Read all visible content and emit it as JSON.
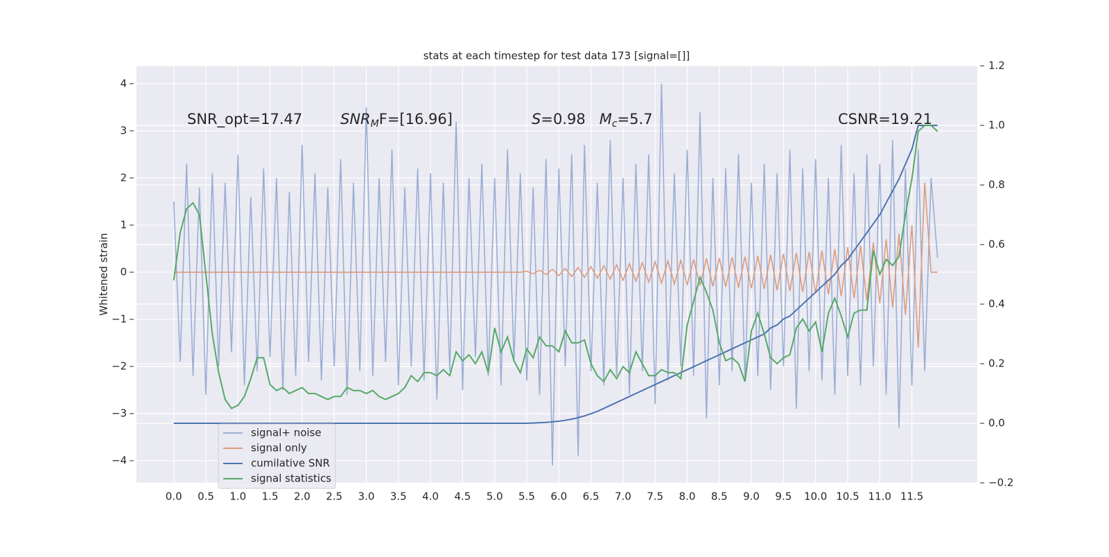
{
  "chart_data": {
    "type": "line",
    "title": "stats at each timestep for test data 173 [signal=[]]",
    "y_label": "Whitened strain",
    "annotations": [
      [
        {
          "text": "SNR_opt=17.47"
        }
      ],
      [
        {
          "text": "SNR",
          "italic": true
        },
        {
          "text": "M",
          "italic": true,
          "sub": true
        },
        {
          "text": "F=[16.96]"
        }
      ],
      [
        {
          "text": "S",
          "italic": true
        },
        {
          "text": "=0.98   "
        },
        {
          "text": "M",
          "italic": true
        },
        {
          "text": "c",
          "italic": true,
          "sub": true
        },
        {
          "text": "=5.7"
        }
      ],
      [
        {
          "text": "CSNR=19.21"
        }
      ]
    ],
    "x": [
      0.0,
      0.1,
      0.2,
      0.3,
      0.4,
      0.5,
      0.6,
      0.7,
      0.8,
      0.9,
      1.0,
      1.1,
      1.2,
      1.3,
      1.4,
      1.5,
      1.6,
      1.7,
      1.8,
      1.9,
      2.0,
      2.1,
      2.2,
      2.3,
      2.4,
      2.5,
      2.6,
      2.7,
      2.8,
      2.9,
      3.0,
      3.1,
      3.2,
      3.3,
      3.4,
      3.5,
      3.6,
      3.7,
      3.8,
      3.9,
      4.0,
      4.1,
      4.2,
      4.3,
      4.4,
      4.5,
      4.6,
      4.7,
      4.8,
      4.9,
      5.0,
      5.1,
      5.2,
      5.3,
      5.4,
      5.5,
      5.6,
      5.7,
      5.8,
      5.9,
      6.0,
      6.1,
      6.2,
      6.3,
      6.4,
      6.5,
      6.6,
      6.7,
      6.8,
      6.9,
      7.0,
      7.1,
      7.2,
      7.3,
      7.4,
      7.5,
      7.6,
      7.7,
      7.8,
      7.9,
      8.0,
      8.1,
      8.2,
      8.3,
      8.4,
      8.5,
      8.6,
      8.7,
      8.8,
      8.9,
      9.0,
      9.1,
      9.2,
      9.3,
      9.4,
      9.5,
      9.6,
      9.7,
      9.8,
      9.9,
      10.0,
      10.1,
      10.2,
      10.3,
      10.4,
      10.5,
      10.6,
      10.7,
      10.8,
      10.9,
      11.0,
      11.1,
      11.2,
      11.3,
      11.4,
      11.5,
      11.6,
      11.7,
      11.8,
      11.9
    ],
    "series": [
      {
        "name": "signal+ noise",
        "color": "#9aaed4",
        "values": [
          1.5,
          -1.9,
          2.3,
          -2.2,
          1.8,
          -2.6,
          2.1,
          -2.0,
          1.9,
          -1.7,
          2.5,
          -2.4,
          1.6,
          -2.1,
          2.2,
          -1.8,
          2.0,
          -2.5,
          1.7,
          -2.2,
          2.7,
          -1.9,
          2.1,
          -2.3,
          1.8,
          -2.0,
          2.4,
          -2.6,
          1.9,
          -2.1,
          3.5,
          -2.2,
          2.0,
          -1.9,
          2.6,
          -2.4,
          1.8,
          -2.0,
          2.2,
          -2.3,
          2.1,
          -2.7,
          1.9,
          -2.1,
          3.2,
          -2.5,
          2.0,
          -1.8,
          2.3,
          -2.2,
          2.0,
          -2.4,
          2.6,
          -1.9,
          2.1,
          -2.3,
          1.8,
          -2.6,
          2.4,
          -4.1,
          2.2,
          -2.0,
          2.5,
          -3.9,
          2.7,
          -2.1,
          1.9,
          -2.4,
          2.8,
          -2.2,
          2.0,
          -2.6,
          2.3,
          -2.1,
          2.5,
          -2.8,
          4.0,
          -2.3,
          2.1,
          -2.0,
          2.6,
          -2.2,
          3.4,
          -3.1,
          2.0,
          -2.4,
          2.2,
          -2.1,
          2.5,
          -2.3,
          1.9,
          -2.2,
          2.3,
          -2.5,
          2.1,
          -2.0,
          2.6,
          -2.9,
          2.2,
          -2.1,
          2.4,
          -2.3,
          2.0,
          -2.6,
          2.7,
          -2.2,
          2.1,
          -2.4,
          2.5,
          -2.0,
          2.3,
          -2.6,
          2.8,
          -3.3,
          2.2,
          -2.4,
          2.6,
          -2.1,
          2.0,
          0.3
        ]
      },
      {
        "name": "signal only",
        "color": "#dd9a7c",
        "values": [
          0,
          0,
          0,
          0,
          0,
          0,
          0,
          0,
          0,
          0,
          0,
          0,
          0,
          0,
          0,
          0,
          0,
          0,
          0,
          0,
          0,
          0,
          0,
          0,
          0,
          0,
          0,
          0,
          0,
          0,
          0,
          0,
          0,
          0,
          0,
          0,
          0,
          0,
          0,
          0,
          0,
          0,
          0,
          0,
          0,
          0,
          0,
          0,
          0,
          0,
          0,
          0,
          0,
          0,
          0,
          0.02,
          -0.03,
          0.04,
          -0.05,
          0.06,
          -0.07,
          0.08,
          -0.09,
          0.1,
          -0.11,
          0.12,
          -0.13,
          0.14,
          -0.15,
          0.16,
          -0.17,
          0.18,
          -0.19,
          0.2,
          -0.21,
          0.22,
          -0.23,
          0.24,
          -0.25,
          0.25,
          -0.26,
          0.27,
          -0.28,
          0.29,
          -0.3,
          0.3,
          -0.31,
          0.32,
          -0.33,
          0.33,
          -0.34,
          0.35,
          -0.36,
          0.37,
          -0.38,
          0.39,
          -0.4,
          0.41,
          -0.42,
          0.43,
          -0.44,
          0.45,
          -0.47,
          0.49,
          -0.51,
          0.53,
          -0.55,
          0.57,
          -0.6,
          0.63,
          -0.66,
          0.7,
          -0.75,
          0.82,
          -0.9,
          1.0,
          -1.6,
          1.9,
          0,
          0
        ]
      },
      {
        "name": "cumilative SNR",
        "color": "#4c72b0",
        "axis": "y2",
        "values": [
          0,
          0,
          0,
          0,
          0,
          0,
          0,
          0,
          0,
          0,
          0,
          0,
          0,
          0,
          0,
          0,
          0,
          0,
          0,
          0,
          0,
          0,
          0,
          0,
          0,
          0,
          0,
          0,
          0,
          0,
          0,
          0,
          0,
          0,
          0,
          0,
          0,
          0,
          0,
          0,
          0,
          0,
          0,
          0,
          0,
          0,
          0,
          0,
          0,
          0,
          0,
          0,
          0,
          0,
          0,
          0,
          0.001,
          0.002,
          0.003,
          0.005,
          0.007,
          0.01,
          0.014,
          0.019,
          0.025,
          0.032,
          0.04,
          0.05,
          0.06,
          0.07,
          0.08,
          0.09,
          0.1,
          0.11,
          0.12,
          0.13,
          0.14,
          0.15,
          0.16,
          0.17,
          0.18,
          0.19,
          0.2,
          0.21,
          0.22,
          0.23,
          0.24,
          0.25,
          0.26,
          0.27,
          0.28,
          0.29,
          0.3,
          0.32,
          0.33,
          0.35,
          0.36,
          0.38,
          0.4,
          0.42,
          0.44,
          0.46,
          0.48,
          0.5,
          0.53,
          0.55,
          0.58,
          0.61,
          0.64,
          0.67,
          0.7,
          0.74,
          0.78,
          0.82,
          0.87,
          0.92,
          1.0,
          1.0,
          1.0,
          1.0
        ]
      },
      {
        "name": "signal statistics",
        "color": "#55a868",
        "axis": "y2",
        "values": [
          0.48,
          0.64,
          0.72,
          0.74,
          0.7,
          0.5,
          0.3,
          0.17,
          0.08,
          0.05,
          0.06,
          0.09,
          0.15,
          0.22,
          0.22,
          0.13,
          0.11,
          0.12,
          0.1,
          0.11,
          0.12,
          0.1,
          0.1,
          0.09,
          0.08,
          0.09,
          0.09,
          0.12,
          0.11,
          0.11,
          0.1,
          0.11,
          0.09,
          0.08,
          0.09,
          0.1,
          0.12,
          0.16,
          0.14,
          0.17,
          0.17,
          0.16,
          0.18,
          0.16,
          0.24,
          0.21,
          0.23,
          0.2,
          0.24,
          0.17,
          0.32,
          0.24,
          0.29,
          0.21,
          0.17,
          0.25,
          0.22,
          0.29,
          0.26,
          0.26,
          0.24,
          0.31,
          0.27,
          0.27,
          0.28,
          0.2,
          0.16,
          0.14,
          0.18,
          0.15,
          0.19,
          0.17,
          0.24,
          0.2,
          0.16,
          0.16,
          0.18,
          0.17,
          0.17,
          0.15,
          0.33,
          0.41,
          0.49,
          0.44,
          0.38,
          0.27,
          0.21,
          0.22,
          0.2,
          0.14,
          0.31,
          0.37,
          0.3,
          0.22,
          0.2,
          0.22,
          0.23,
          0.32,
          0.35,
          0.31,
          0.34,
          0.24,
          0.37,
          0.42,
          0.36,
          0.29,
          0.37,
          0.38,
          0.38,
          0.58,
          0.5,
          0.55,
          0.53,
          0.56,
          0.7,
          0.82,
          0.98,
          1.0,
          1.0,
          0.98
        ]
      }
    ],
    "xlim": [
      -0.58,
      12.52
    ],
    "xticks": [
      {
        "value": 0,
        "label": "0.0"
      },
      0.5,
      {
        "value": 1,
        "label": "1.0"
      },
      1.5,
      {
        "value": 2,
        "label": "2.0"
      },
      2.5,
      {
        "value": 3,
        "label": "3.0"
      },
      3.5,
      {
        "value": 4,
        "label": "4.0"
      },
      4.5,
      {
        "value": 5,
        "label": "5.0"
      },
      5.5,
      {
        "value": 6,
        "label": "6.0"
      },
      6.5,
      {
        "value": 7,
        "label": "7.0"
      },
      7.5,
      {
        "value": 8,
        "label": "8.0"
      },
      8.5,
      {
        "value": 9,
        "label": "9.0"
      },
      9.5,
      {
        "value": 10,
        "label": "10.0"
      },
      10.5,
      {
        "value": 11,
        "label": "11.0"
      },
      11.5
    ],
    "ylim": [
      -4.47,
      4.38
    ],
    "yticks": [
      {
        "value": -4,
        "label": "−4"
      },
      {
        "value": -3,
        "label": "−3"
      },
      {
        "value": -2,
        "label": "−2"
      },
      {
        "value": -1,
        "label": "−1"
      },
      0,
      1,
      2,
      3,
      4
    ],
    "y2lim": [
      -0.2,
      1.2
    ],
    "y2ticks": [
      {
        "value": -0.2,
        "label": "−0.2"
      },
      {
        "value": 0,
        "label": "0.0"
      },
      0.2,
      0.4,
      0.6,
      0.8,
      {
        "value": 1,
        "label": "1.0"
      },
      1.2
    ],
    "grid": true
  }
}
